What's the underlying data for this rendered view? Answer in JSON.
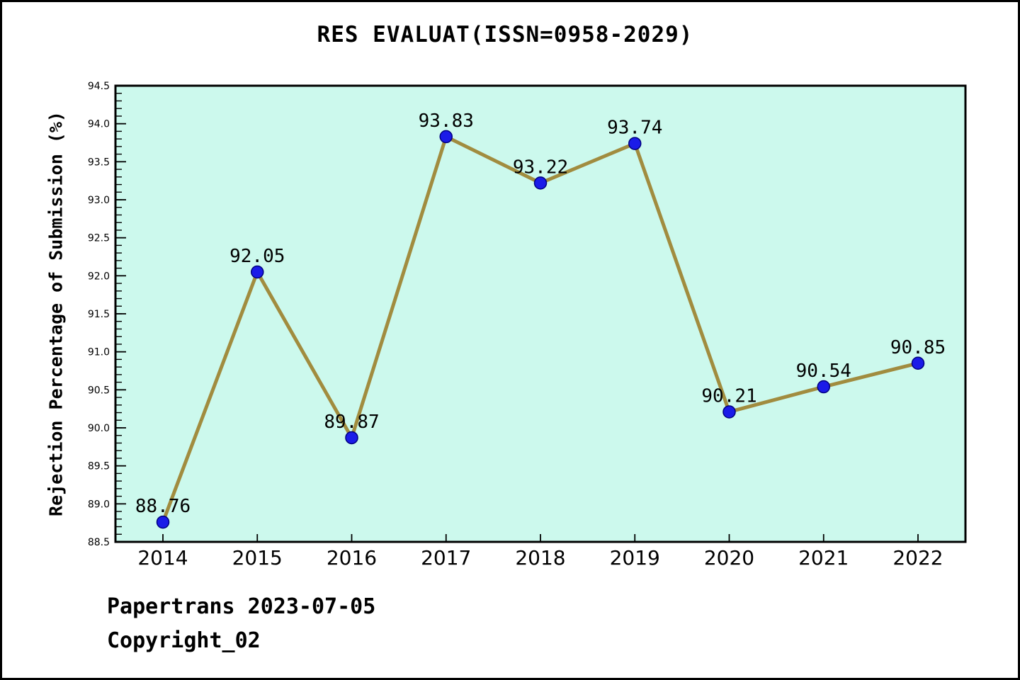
{
  "title": "RES EVALUAT(ISSN=0958-2029)",
  "footer": {
    "source": "Papertrans 2023-07-05",
    "copyright": "Copyright_02"
  },
  "chart_data": {
    "type": "line",
    "x": [
      2014,
      2015,
      2016,
      2017,
      2018,
      2019,
      2020,
      2021,
      2022
    ],
    "series": [
      {
        "name": "Rejection Percentage of Submission",
        "values": [
          88.76,
          92.05,
          89.87,
          93.83,
          93.22,
          93.74,
          90.21,
          90.54,
          90.85
        ]
      }
    ],
    "point_labels": [
      "88.76",
      "92.05",
      "89.87",
      "93.83",
      "93.22",
      "93.74",
      "90.21",
      "90.54",
      "90.85"
    ],
    "title": "RES EVALUAT(ISSN=0958-2029)",
    "xlabel": "",
    "ylabel": "Rejection Percentage of Submission (%)",
    "ylim": [
      88.5,
      94.5
    ],
    "ytick_step": 0.5,
    "yminor_step": 0.1,
    "grid": false,
    "legend": false,
    "colors": {
      "line": "#a18c3f",
      "marker_fill": "#1b1be8",
      "marker_edge": "#000080",
      "plot_bg": "#ccf9ed",
      "axis": "#000000",
      "page_bg": "#ffffff",
      "text": "#000000"
    }
  }
}
